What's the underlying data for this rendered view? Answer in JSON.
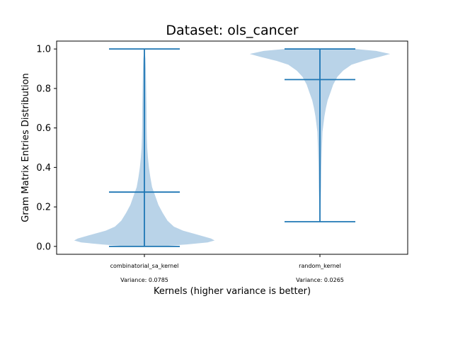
{
  "chart_data": {
    "type": "violin",
    "title": "Dataset: ols_cancer",
    "xlabel": "Kernels (higher variance is better)",
    "ylabel": "Gram Matrix Entries Distribution",
    "ylim": [
      -0.04,
      1.04
    ],
    "yticks": [
      "0.0",
      "0.2",
      "0.4",
      "0.6",
      "0.8",
      "1.0"
    ],
    "grid": false,
    "fill_color": "#b9d3e8",
    "line_color": "#1f77b4",
    "series": [
      {
        "name": "combinatorial_sa_kernel",
        "variance_label": "Variance: 0.0785",
        "min": 0.0,
        "median": 0.275,
        "max": 1.0,
        "density": [
          [
            0.0,
            0.22
          ],
          [
            0.01,
            0.6
          ],
          [
            0.02,
            0.9
          ],
          [
            0.03,
            1.0
          ],
          [
            0.04,
            0.95
          ],
          [
            0.06,
            0.75
          ],
          [
            0.08,
            0.55
          ],
          [
            0.1,
            0.42
          ],
          [
            0.13,
            0.33
          ],
          [
            0.17,
            0.26
          ],
          [
            0.21,
            0.2
          ],
          [
            0.26,
            0.15
          ],
          [
            0.3,
            0.11
          ],
          [
            0.35,
            0.085
          ],
          [
            0.4,
            0.065
          ],
          [
            0.45,
            0.05
          ],
          [
            0.5,
            0.04
          ],
          [
            0.55,
            0.035
          ],
          [
            0.6,
            0.032
          ],
          [
            0.7,
            0.03
          ],
          [
            0.8,
            0.025
          ],
          [
            0.9,
            0.02
          ],
          [
            0.95,
            0.015
          ],
          [
            1.0,
            0.0
          ]
        ]
      },
      {
        "name": "random_kernel",
        "variance_label": "Variance: 0.0265",
        "min": 0.125,
        "median": 0.845,
        "max": 1.0,
        "density": [
          [
            0.125,
            0.0
          ],
          [
            0.15,
            0.004
          ],
          [
            0.2,
            0.008
          ],
          [
            0.25,
            0.012
          ],
          [
            0.3,
            0.016
          ],
          [
            0.4,
            0.02
          ],
          [
            0.5,
            0.028
          ],
          [
            0.58,
            0.036
          ],
          [
            0.62,
            0.05
          ],
          [
            0.66,
            0.065
          ],
          [
            0.7,
            0.085
          ],
          [
            0.74,
            0.11
          ],
          [
            0.78,
            0.15
          ],
          [
            0.82,
            0.19
          ],
          [
            0.86,
            0.25
          ],
          [
            0.89,
            0.33
          ],
          [
            0.92,
            0.45
          ],
          [
            0.94,
            0.62
          ],
          [
            0.96,
            0.85
          ],
          [
            0.975,
            1.0
          ],
          [
            0.99,
            0.8
          ],
          [
            1.0,
            0.5
          ]
        ]
      }
    ]
  }
}
